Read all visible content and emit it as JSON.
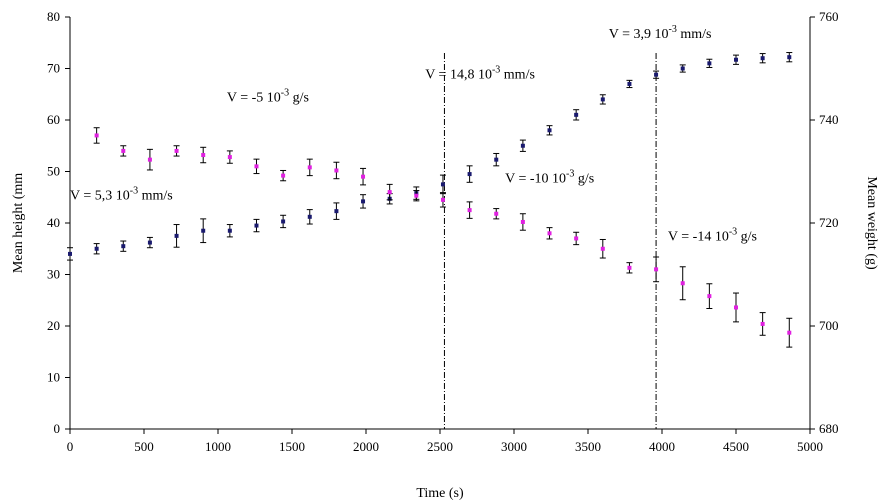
{
  "chart_data": {
    "type": "scatter",
    "xlabel": "Time (s)",
    "ylabel_left": "Mean height (mm",
    "ylabel_right": "Mean weight (g)",
    "xlim": [
      0,
      5000
    ],
    "ylim_left": [
      0,
      80
    ],
    "ylim_right": [
      680,
      760
    ],
    "x_ticks": [
      "0",
      "500",
      "1000",
      "1500",
      "2000",
      "2500",
      "3000",
      "3500",
      "4000",
      "4500",
      "5000"
    ],
    "y_left_ticks": [
      "0",
      "10",
      "20",
      "30",
      "40",
      "50",
      "60",
      "70",
      "80"
    ],
    "y_right_ticks": [
      "680",
      "700",
      "720",
      "740",
      "760"
    ],
    "grid": false,
    "legend": "none",
    "series": [
      {
        "axis": "left",
        "color": "#1a1a6e",
        "x": [
          0,
          180,
          360,
          540,
          720,
          900,
          1080,
          1260,
          1440,
          1620,
          1800,
          1980,
          2160,
          2340,
          2520,
          2700,
          2880,
          3060,
          3240,
          3420,
          3600,
          3780,
          3960,
          4140,
          4320,
          4500,
          4680,
          4860
        ],
        "values": [
          34,
          35,
          35.5,
          36.2,
          37.5,
          38.5,
          38.5,
          39.5,
          40.3,
          41.2,
          42.3,
          44.2,
          44.7,
          45.8,
          47.5,
          49.5,
          52.3,
          55,
          58,
          61,
          64,
          67,
          68.8,
          70,
          71,
          71.7,
          72,
          72.2
        ],
        "errors": [
          1.2,
          1,
          1,
          1,
          2.2,
          2.3,
          1.2,
          1.2,
          1.2,
          1.4,
          1.6,
          1.3,
          1,
          1.2,
          1.8,
          1.6,
          1.2,
          1.1,
          0.9,
          1,
          0.9,
          0.7,
          0.7,
          0.7,
          0.8,
          0.9,
          0.9,
          0.9
        ]
      },
      {
        "axis": "right",
        "color": "#e020e0",
        "x": [
          180,
          360,
          540,
          720,
          900,
          1080,
          1260,
          1440,
          1620,
          1800,
          1980,
          2160,
          2340,
          2520,
          2700,
          2880,
          3060,
          3240,
          3420,
          3600,
          3780,
          3960,
          4140,
          4320,
          4500,
          4680,
          4860
        ],
        "values": [
          737,
          734,
          732.3,
          734,
          733.2,
          732.8,
          731,
          729.2,
          730.8,
          730.2,
          729,
          726,
          725.3,
          724.5,
          722.5,
          721.8,
          720.2,
          718,
          717,
          715,
          711.3,
          711,
          708.3,
          705.8,
          703.6,
          700.4,
          698.7
        ],
        "errors": [
          1.5,
          1,
          2,
          1,
          1.5,
          1.2,
          1.4,
          1,
          1.6,
          1.6,
          1.6,
          1.5,
          1,
          1.4,
          1.6,
          1,
          1.6,
          1.1,
          1.2,
          1.8,
          1,
          2.4,
          3.2,
          2.4,
          2.8,
          2.2,
          2.8
        ]
      }
    ],
    "reference_lines": [
      2530,
      3960
    ],
    "annotations": [
      {
        "x": 1060,
        "y": 63.6,
        "lead": "V = -5 10",
        "sup": "-3",
        "tail": " g/s"
      },
      {
        "x": 0,
        "y": 44.6,
        "lead": "V = 5,3 10",
        "sup": "-3",
        "tail": " mm/s"
      },
      {
        "x": 3640,
        "y": 75.9,
        "lead": "V = 3,9 10",
        "sup": "-3",
        "tail": " mm/s"
      },
      {
        "x": 2400,
        "y": 68.1,
        "lead": "V = 14,8 10",
        "sup": "-3",
        "tail": " mm/s"
      },
      {
        "x": 2940,
        "y": 47.9,
        "lead": "V = -10 10",
        "sup": "-3",
        "tail": " g/s"
      },
      {
        "x": 4040,
        "y": 36.6,
        "lead": "V = -14 10",
        "sup": "-3",
        "tail": " g/s"
      }
    ]
  }
}
